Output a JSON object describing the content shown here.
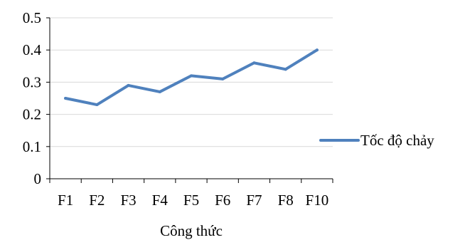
{
  "chart_data": {
    "type": "line",
    "categories": [
      "F1",
      "F2",
      "F3",
      "F4",
      "F5",
      "F6",
      "F7",
      "F8",
      "F10"
    ],
    "series": [
      {
        "name": "Tốc độ chảy",
        "values": [
          0.25,
          0.23,
          0.29,
          0.27,
          0.32,
          0.31,
          0.36,
          0.34,
          0.4
        ],
        "color": "#4f81bd"
      }
    ],
    "title": "",
    "xlabel": "Công thức",
    "ylabel": "",
    "ylim": [
      0,
      0.5
    ],
    "yticks": [
      "0",
      "0.1",
      "0.2",
      "0.3",
      "0.4",
      "0.5"
    ],
    "grid": true,
    "legend": "right",
    "gridline_color": "#d9d9d9",
    "axis_color": "#000000"
  }
}
